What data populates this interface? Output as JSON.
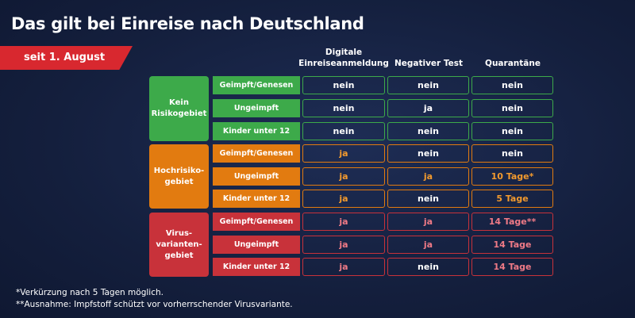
{
  "title": "Das gilt bei Einreise nach Deutschland",
  "ribbon": "seit 1. August",
  "columns": [
    "Digitale\nEinreiseanmeldung",
    "Negativer Test",
    "Quarantäne"
  ],
  "groups": [
    {
      "label": "Kein\nRisikogebiet",
      "rows": [
        {
          "label": "Geimpft/Genesen",
          "values": [
            "nein",
            "nein",
            "nein"
          ]
        },
        {
          "label": "Ungeimpft",
          "values": [
            "nein",
            "ja",
            "nein"
          ]
        },
        {
          "label": "Kinder unter 12",
          "values": [
            "nein",
            "nein",
            "nein"
          ]
        }
      ]
    },
    {
      "label": "Hochrisiko-\ngebiet",
      "rows": [
        {
          "label": "Geimpft/Genesen",
          "values": [
            "ja",
            "nein",
            "nein"
          ]
        },
        {
          "label": "Ungeimpft",
          "values": [
            "ja",
            "ja",
            "10 Tage*"
          ]
        },
        {
          "label": "Kinder unter 12",
          "values": [
            "ja",
            "nein",
            "5 Tage"
          ]
        }
      ]
    },
    {
      "label": "Virus-\nvarianten-\ngebiet",
      "rows": [
        {
          "label": "Geimpft/Genesen",
          "values": [
            "ja",
            "ja",
            "14 Tage**"
          ]
        },
        {
          "label": "Ungeimpft",
          "values": [
            "ja",
            "ja",
            "14 Tage"
          ]
        },
        {
          "label": "Kinder unter 12",
          "values": [
            "ja",
            "nein",
            "14 Tage"
          ]
        }
      ]
    }
  ],
  "colors": {
    "green": "#3daa4a",
    "orange": "#e27b10",
    "red": "#c8323a",
    "ribbon": "#d8282f"
  },
  "footnotes": [
    "*Verkürzung nach 5 Tagen möglich.",
    "**Ausnahme: Impfstoff schützt vor vorherrschender Virusvariante."
  ]
}
